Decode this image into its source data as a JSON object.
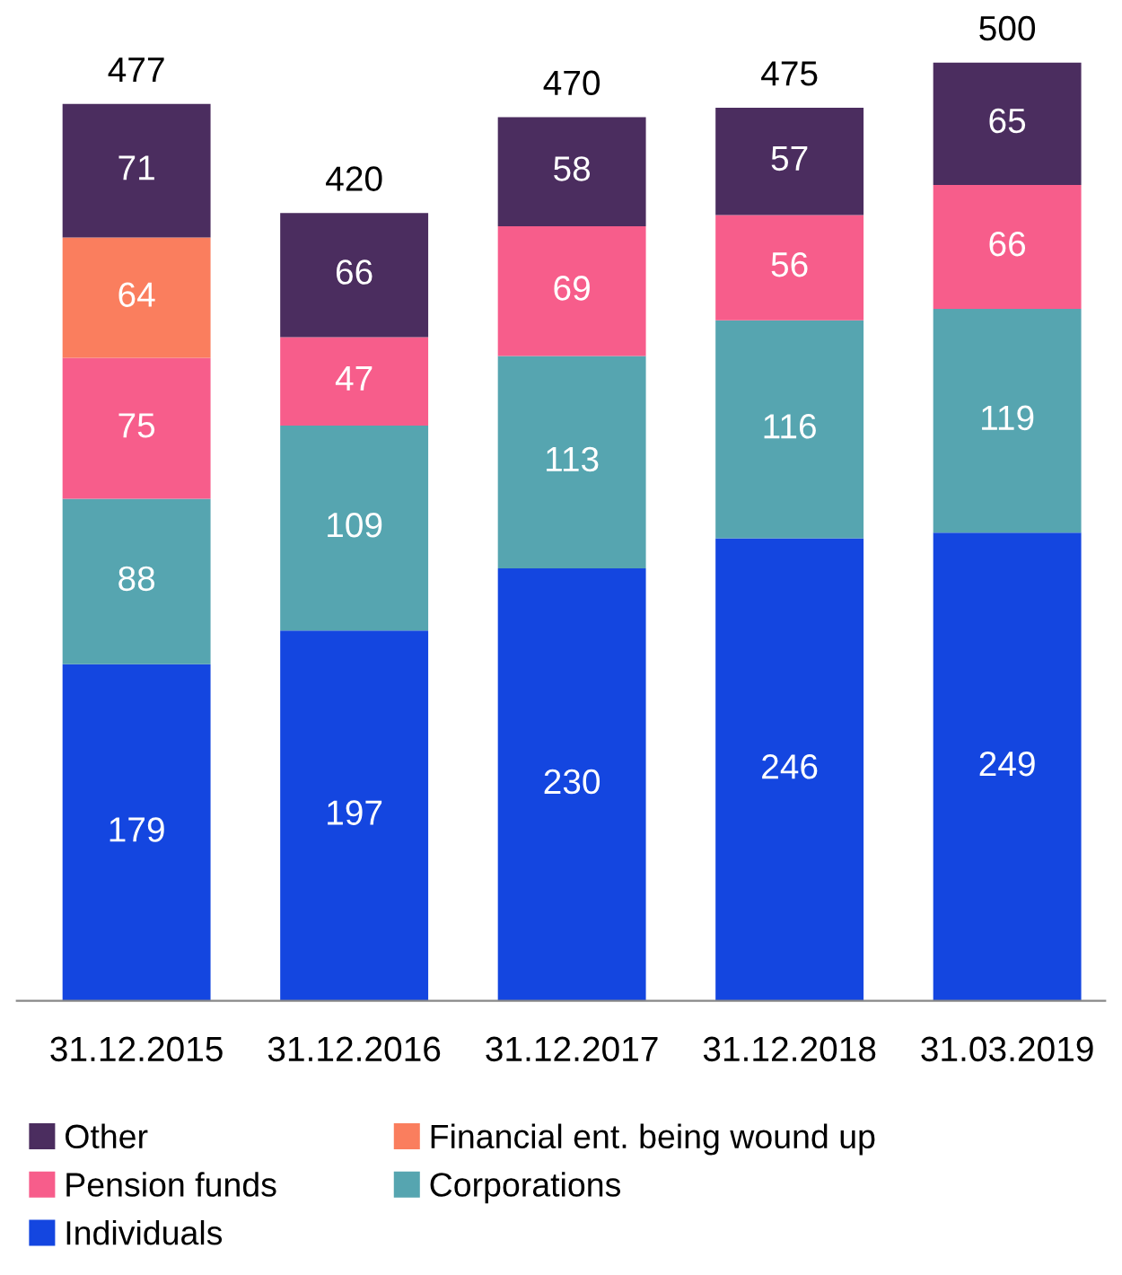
{
  "chart_data": {
    "type": "bar",
    "stacked": true,
    "data_labels": true,
    "legend": "bottom",
    "grid": false,
    "categories": [
      "31.12.2015",
      "31.12.2016",
      "31.12.2017",
      "31.12.2018",
      "31.03.2019"
    ],
    "series": [
      {
        "name": "Individuals",
        "color": "#1446e0",
        "values": [
          179,
          197,
          230,
          246,
          249
        ]
      },
      {
        "name": "Corporations",
        "color": "#56a5b0",
        "values": [
          88,
          109,
          113,
          116,
          119
        ]
      },
      {
        "name": "Pension funds",
        "color": "#f75d8b",
        "values": [
          75,
          47,
          69,
          56,
          66
        ]
      },
      {
        "name": "Financial ent. being wound up",
        "color": "#fa7e5e",
        "values": [
          64,
          null,
          null,
          null,
          null
        ]
      },
      {
        "name": "Other",
        "color": "#4b2d5f",
        "values": [
          71,
          66,
          58,
          57,
          65
        ]
      }
    ],
    "totals": [
      "477",
      "420",
      "470",
      "475",
      "500"
    ]
  }
}
